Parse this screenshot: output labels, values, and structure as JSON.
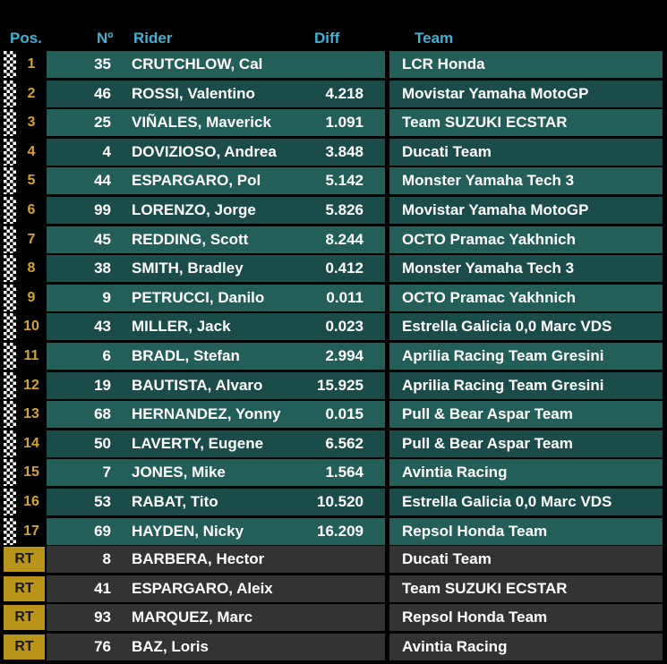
{
  "headers": {
    "pos": "Pos.",
    "num": "Nº",
    "rider": "Rider",
    "diff": "Diff",
    "team": "Team"
  },
  "colors": {
    "header_text": "#3fb2d6",
    "row_light": "#235e58",
    "row_dark": "#1b4c4a",
    "retired_row": "#333333",
    "position_text": "#d2a530",
    "rt_badge": "#b9941b"
  },
  "rows": [
    {
      "pos": "1",
      "num": "35",
      "rider": "CRUTCHLOW, Cal",
      "diff": "",
      "team": "LCR Honda"
    },
    {
      "pos": "2",
      "num": "46",
      "rider": "ROSSI, Valentino",
      "diff": "4.218",
      "team": "Movistar Yamaha MotoGP"
    },
    {
      "pos": "3",
      "num": "25",
      "rider": "VIÑALES, Maverick",
      "diff": "1.091",
      "team": "Team SUZUKI ECSTAR"
    },
    {
      "pos": "4",
      "num": "4",
      "rider": "DOVIZIOSO, Andrea",
      "diff": "3.848",
      "team": "Ducati Team"
    },
    {
      "pos": "5",
      "num": "44",
      "rider": "ESPARGARO, Pol",
      "diff": "5.142",
      "team": "Monster Yamaha Tech 3"
    },
    {
      "pos": "6",
      "num": "99",
      "rider": "LORENZO, Jorge",
      "diff": "5.826",
      "team": "Movistar Yamaha MotoGP"
    },
    {
      "pos": "7",
      "num": "45",
      "rider": "REDDING, Scott",
      "diff": "8.244",
      "team": "OCTO Pramac Yakhnich"
    },
    {
      "pos": "8",
      "num": "38",
      "rider": "SMITH, Bradley",
      "diff": "0.412",
      "team": "Monster Yamaha Tech 3"
    },
    {
      "pos": "9",
      "num": "9",
      "rider": "PETRUCCI, Danilo",
      "diff": "0.011",
      "team": "OCTO Pramac Yakhnich"
    },
    {
      "pos": "10",
      "num": "43",
      "rider": "MILLER, Jack",
      "diff": "0.023",
      "team": "Estrella Galicia 0,0 Marc VDS"
    },
    {
      "pos": "11",
      "num": "6",
      "rider": "BRADL, Stefan",
      "diff": "2.994",
      "team": "Aprilia Racing Team Gresini"
    },
    {
      "pos": "12",
      "num": "19",
      "rider": "BAUTISTA, Alvaro",
      "diff": "15.925",
      "team": "Aprilia Racing Team Gresini"
    },
    {
      "pos": "13",
      "num": "68",
      "rider": "HERNANDEZ, Yonny",
      "diff": "0.015",
      "team": "Pull & Bear Aspar Team"
    },
    {
      "pos": "14",
      "num": "50",
      "rider": "LAVERTY, Eugene",
      "diff": "6.562",
      "team": "Pull & Bear Aspar Team"
    },
    {
      "pos": "15",
      "num": "7",
      "rider": "JONES, Mike",
      "diff": "1.564",
      "team": "Avintia Racing"
    },
    {
      "pos": "16",
      "num": "53",
      "rider": "RABAT, Tito",
      "diff": "10.520",
      "team": "Estrella Galicia 0,0 Marc VDS"
    },
    {
      "pos": "17",
      "num": "69",
      "rider": "HAYDEN, Nicky",
      "diff": "16.209",
      "team": "Repsol Honda Team"
    }
  ],
  "retired": [
    {
      "pos": "RT",
      "num": "8",
      "rider": "BARBERA, Hector",
      "diff": "",
      "team": "Ducati Team"
    },
    {
      "pos": "RT",
      "num": "41",
      "rider": "ESPARGARO, Aleix",
      "diff": "",
      "team": "Team SUZUKI ECSTAR"
    },
    {
      "pos": "RT",
      "num": "93",
      "rider": "MARQUEZ, Marc",
      "diff": "",
      "team": "Repsol Honda Team"
    },
    {
      "pos": "RT",
      "num": "76",
      "rider": "BAZ, Loris",
      "diff": "",
      "team": "Avintia Racing"
    }
  ]
}
